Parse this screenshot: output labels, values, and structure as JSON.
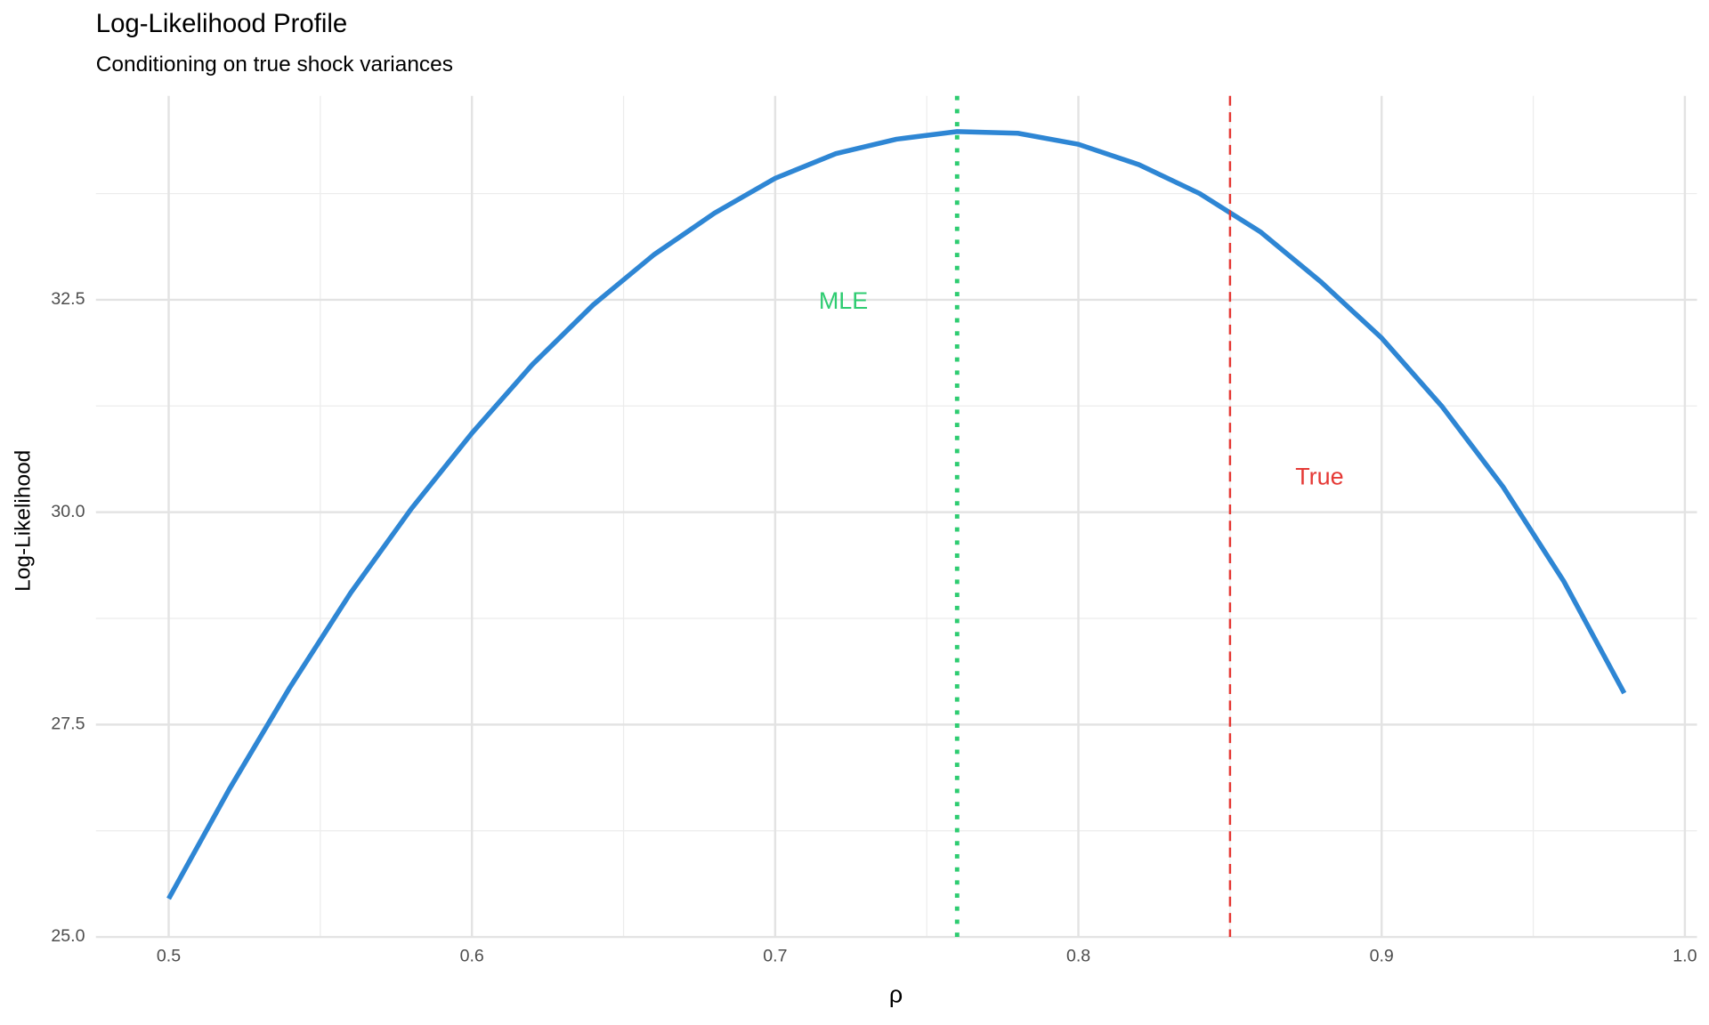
{
  "chart_data": {
    "type": "line",
    "title": "Log-Likelihood Profile",
    "subtitle": "Conditioning on true shock variances",
    "x_label": "ρ",
    "y_label": "Log-Likelihood",
    "x": [
      0.5,
      0.52,
      0.54,
      0.56,
      0.58,
      0.6,
      0.62,
      0.64,
      0.66,
      0.68,
      0.7,
      0.72,
      0.74,
      0.76,
      0.78,
      0.8,
      0.82,
      0.84,
      0.86,
      0.88,
      0.9,
      0.92,
      0.94,
      0.96,
      0.98
    ],
    "series": [
      {
        "color": "#2e86d4",
        "values": [
          25.45,
          26.74,
          27.94,
          29.05,
          30.04,
          30.93,
          31.74,
          32.44,
          33.03,
          33.52,
          33.93,
          34.22,
          34.39,
          34.48,
          34.46,
          34.33,
          34.09,
          33.75,
          33.3,
          32.71,
          32.05,
          31.24,
          30.3,
          29.19,
          27.87
        ]
      }
    ],
    "reference_lines": [
      {
        "label": "MLE",
        "x": 0.76,
        "color": "#2ecc71",
        "style": "dotted",
        "label_x": 0.7225,
        "label_y": 32.47
      },
      {
        "label": "True",
        "x": 0.85,
        "color": "#e53935",
        "style": "dashed",
        "label_x": 0.8795,
        "label_y": 30.4
      }
    ],
    "xlim": [
      0.476,
      1.004
    ],
    "ylim": [
      25.0,
      34.9
    ],
    "xticks": [
      0.5,
      0.6,
      0.7,
      0.8,
      0.9,
      {
        "value": 1.0,
        "label": "1.0"
      }
    ],
    "yticks": [
      {
        "value": 25.0,
        "label": "25.0"
      },
      27.5,
      {
        "value": 30.0,
        "label": "30.0"
      },
      32.5
    ],
    "x_minor_ticks": [
      0.55,
      0.65,
      0.75,
      0.85,
      0.95
    ],
    "y_minor_ticks": [
      26.25,
      28.75,
      31.25,
      33.75
    ],
    "grid": true
  }
}
